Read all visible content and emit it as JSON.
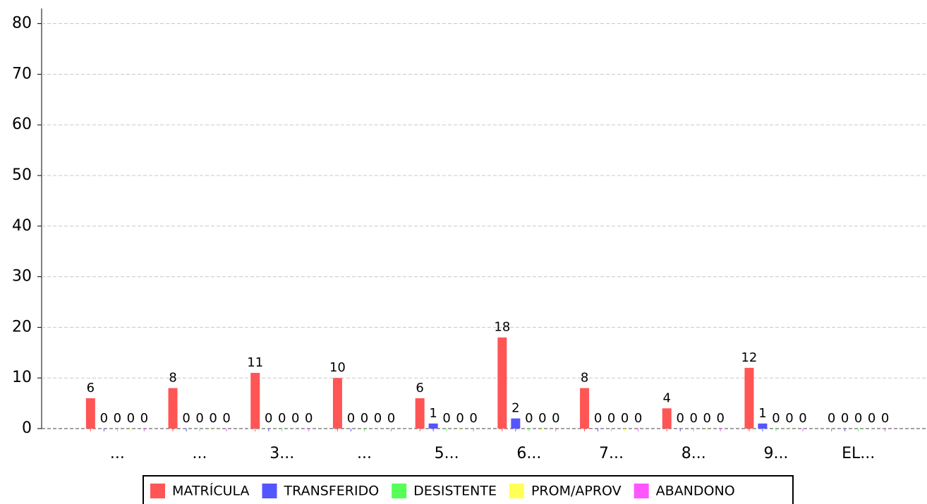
{
  "chart_data": {
    "type": "bar",
    "categories": [
      "...",
      "...",
      "3...",
      "...",
      "5...",
      "6...",
      "7...",
      "8...",
      "9...",
      "EL..."
    ],
    "series": [
      {
        "name": "MATRÍCULA",
        "color": "#ff5555",
        "values": [
          6,
          8,
          11,
          10,
          6,
          18,
          8,
          4,
          12,
          0
        ]
      },
      {
        "name": "TRANSFERIDO",
        "color": "#5555ff",
        "values": [
          0,
          0,
          0,
          0,
          1,
          2,
          0,
          0,
          1,
          0
        ]
      },
      {
        "name": "DESISTENTE",
        "color": "#55ff55",
        "values": [
          0,
          0,
          0,
          0,
          0,
          0,
          0,
          0,
          0,
          0
        ]
      },
      {
        "name": "PROM/APROV",
        "color": "#ffff55",
        "values": [
          0,
          0,
          0,
          0,
          0,
          0,
          0,
          0,
          0,
          0
        ]
      },
      {
        "name": "ABANDONO",
        "color": "#ff55ff",
        "values": [
          0,
          0,
          0,
          0,
          0,
          0,
          0,
          0,
          0,
          0
        ]
      }
    ],
    "ylim": [
      0,
      83
    ],
    "yticks": [
      0,
      10,
      20,
      30,
      40,
      50,
      60,
      70,
      80
    ],
    "grid": true,
    "legend": "bottom"
  }
}
